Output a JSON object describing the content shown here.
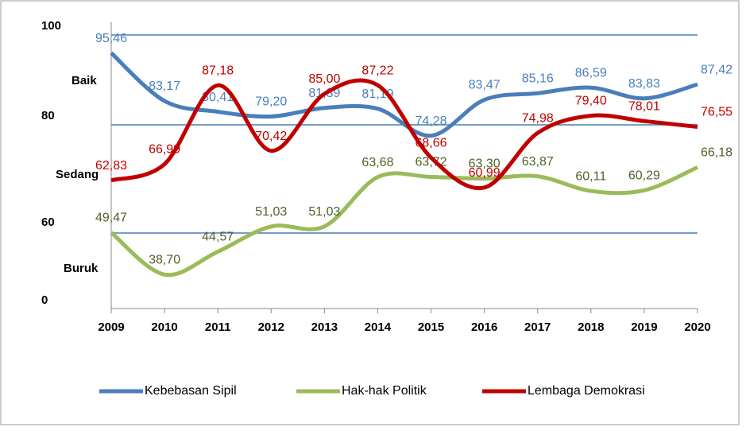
{
  "chart_data": {
    "type": "line",
    "x": [
      2009,
      2010,
      2011,
      2012,
      2013,
      2014,
      2015,
      2016,
      2017,
      2018,
      2019,
      2020
    ],
    "series": [
      {
        "name": "Kebebasan Sipil",
        "color": "#4a7ebb",
        "label_color": "#4a7ebb",
        "values": [
          95.46,
          83.17,
          80.41,
          79.2,
          81.39,
          81.19,
          74.28,
          83.47,
          85.16,
          86.59,
          83.83,
          87.42
        ],
        "value_labels": [
          "95,46",
          "83,17",
          "80,41",
          "79,20",
          "81,39",
          "81,19",
          "74,28",
          "83,47",
          "85,16",
          "86,59",
          "83,83",
          "87,42"
        ]
      },
      {
        "name": "Hak-hak Politik",
        "color": "#9bbb59",
        "label_color": "#4f6228",
        "values": [
          49.47,
          38.7,
          44.57,
          51.03,
          51.03,
          63.68,
          63.72,
          63.3,
          63.87,
          60.11,
          60.29,
          66.18
        ],
        "value_labels": [
          "49,47",
          "38,70",
          "44,57",
          "51,03",
          "51,03",
          "63,68",
          "63,72",
          "63,30",
          "63,87",
          "60,11",
          "60,29",
          "66,18"
        ]
      },
      {
        "name": "Lembaga Demokrasi",
        "color": "#c00000",
        "label_color": "#c00000",
        "values": [
          62.83,
          66.99,
          87.18,
          70.42,
          85.0,
          87.22,
          68.66,
          60.99,
          74.98,
          79.4,
          78.01,
          76.55
        ],
        "value_labels": [
          "62,83",
          "66,99",
          "87,18",
          "70,42",
          "85,00",
          "87,22",
          "68,66",
          "60,99",
          "74,98",
          "79,40",
          "78,01",
          "76,55"
        ]
      }
    ],
    "xlim": [
      2009,
      2020
    ],
    "ylim": [
      30,
      107
    ],
    "axis_labels": [
      "100",
      "80",
      "60",
      "0"
    ],
    "category_labels": [
      "Baik",
      "Sedang",
      "Buruk"
    ]
  }
}
